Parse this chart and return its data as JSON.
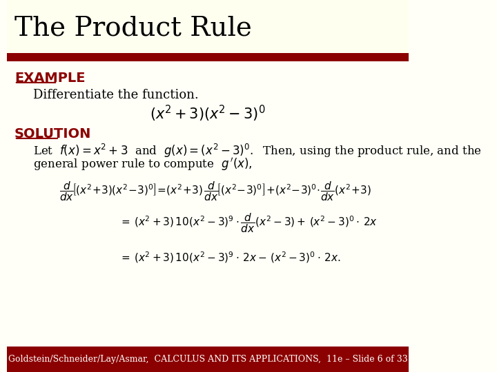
{
  "title": "The Product Rule",
  "title_fontsize": 28,
  "title_color": "#000000",
  "title_bg_color": "#FFFFF0",
  "red_bar_color": "#8B0000",
  "body_bg_color": "#FFFFF8",
  "example_label": "EXAMPLE",
  "example_fontsize": 14,
  "example_color": "#8B0000",
  "differentiate_text": "Differentiate the function.",
  "differentiate_fontsize": 13,
  "solution_label": "SOLUTION",
  "solution_fontsize": 14,
  "solution_color": "#8B0000",
  "footer_text": "Goldstein/Schneider/Lay/Asmar,  CALCULUS AND ITS APPLICATIONS,  11e – Slide 6 of 33",
  "footer_bg_color": "#8B0000",
  "footer_text_color": "#ffffff",
  "footer_fontsize": 9
}
